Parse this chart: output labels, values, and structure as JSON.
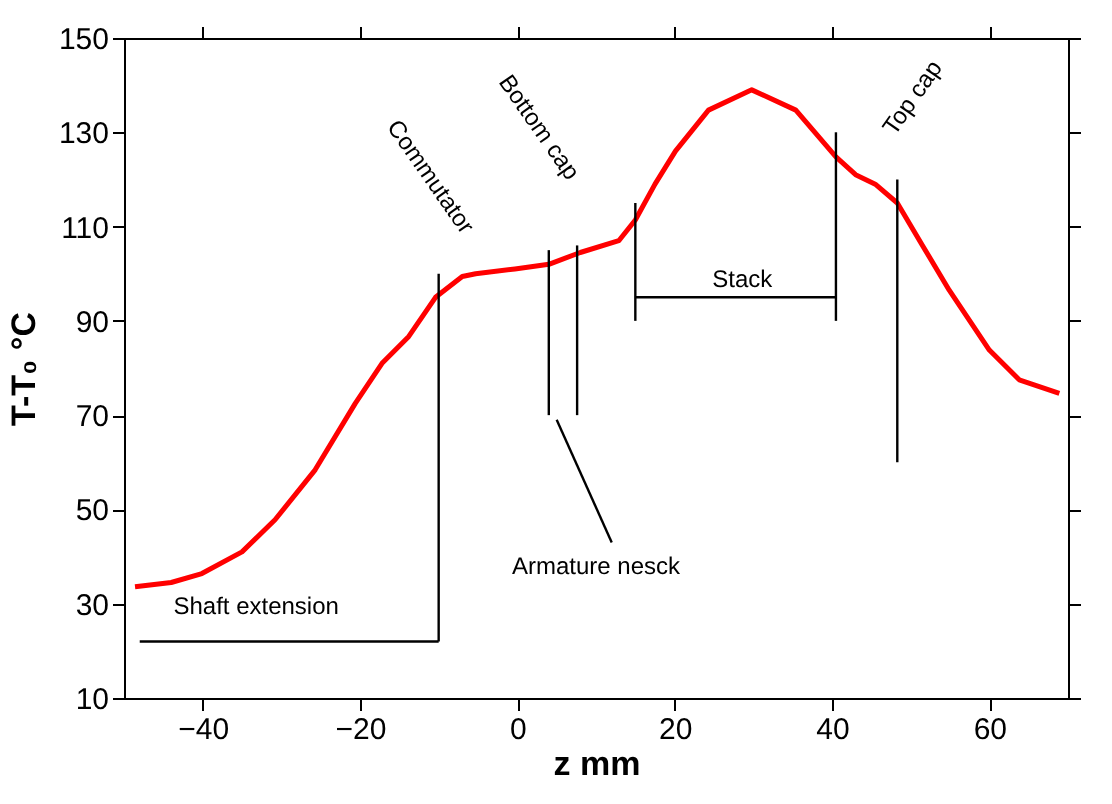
{
  "chart_data": {
    "type": "line",
    "xlabel": "z  mm",
    "ylabel": "T-T₀  °C",
    "xlim": [
      -50,
      70
    ],
    "xticks": [
      -40,
      -20,
      0,
      20,
      40,
      60
    ],
    "ylim": [
      10,
      150
    ],
    "yticks": [
      10,
      30,
      50,
      70,
      90,
      110,
      130,
      150
    ],
    "grid": false,
    "marker": "none",
    "line_style": "solid",
    "series": [
      {
        "color": "#ff0000",
        "x": [
          -48.6,
          -44,
          -40.1,
          -35,
          -30.8,
          -25.7,
          -20.6,
          -17.2,
          -13.8,
          -10.4,
          -7,
          -5.3,
          -0.3,
          4,
          8,
          12.9,
          15,
          17.5,
          20.1,
          24.3,
          29.8,
          35.4,
          40.5,
          43,
          45.5,
          48.3,
          51.5,
          54.9,
          60,
          63.8,
          68.9
        ],
        "values": [
          33.6,
          34.5,
          36.4,
          41,
          47.8,
          58.4,
          72.5,
          81,
          86.7,
          95,
          99.4,
          100,
          101,
          102,
          104.5,
          107,
          111.4,
          119,
          126,
          134.7,
          139,
          134.7,
          124.8,
          121,
          119,
          115,
          106,
          96.5,
          83.8,
          77.5,
          74.6
        ]
      },
      {
        "type": "line",
        "color": "#000000",
        "x": [
          -10,
          -10
        ],
        "values": [
          22,
          100
        ]
      },
      {
        "type": "line",
        "color": "#000000",
        "x": [
          -48,
          -10
        ],
        "values": [
          22,
          22
        ]
      },
      {
        "type": "line",
        "color": "#000000",
        "x": [
          4,
          4
        ],
        "values": [
          70,
          105
        ]
      },
      {
        "type": "line",
        "color": "#000000",
        "x": [
          7.6,
          7.6
        ],
        "values": [
          70,
          106
        ]
      },
      {
        "type": "line",
        "color": "#000000",
        "x": [
          5,
          12
        ],
        "values": [
          69,
          43
        ]
      },
      {
        "type": "line",
        "color": "#000000",
        "x": [
          15,
          15
        ],
        "values": [
          90,
          115
        ]
      },
      {
        "type": "line",
        "color": "#000000",
        "x": [
          40.5,
          40.5
        ],
        "values": [
          90,
          130
        ]
      },
      {
        "type": "line",
        "color": "#000000",
        "x": [
          15,
          40.5
        ],
        "values": [
          95,
          95
        ]
      },
      {
        "type": "line",
        "color": "#000000",
        "x": [
          48.3,
          48.3
        ],
        "values": [
          60,
          120
        ]
      }
    ],
    "annotations": [
      "Commutator",
      "Bottom cap",
      "Stack",
      "Top cap",
      "Armature nesck",
      "Shaft extension"
    ]
  }
}
